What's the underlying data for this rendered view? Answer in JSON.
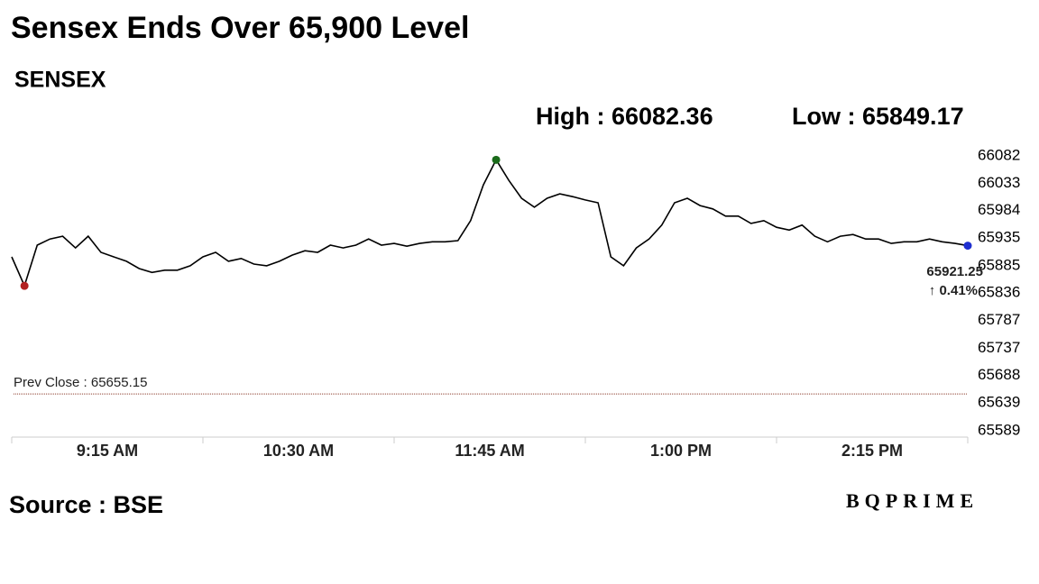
{
  "chart_data": {
    "type": "line",
    "title": "Sensex Ends Over 65,900 Level",
    "subtitle": "SENSEX",
    "high_label": "High : 66082.36",
    "low_label": "Low : 65849.17",
    "last_label": "65921.25",
    "change_label": "↑ 0.41%",
    "change_color": "#1a6b1a",
    "prev_close_label": "Prev Close : 65655.15",
    "prev_close": 65655.15,
    "prev_close_color": "#8b3a2a",
    "source": "Source : BSE",
    "logo": "BQPRIME",
    "xlim": [
      "9:15",
      "15:30"
    ],
    "xticks": [
      {
        "value": "9:15",
        "label": "9:15 AM"
      },
      {
        "value": "10:30",
        "label": "10:30 AM"
      },
      {
        "value": "11:45",
        "label": "11:45 AM"
      },
      {
        "value": "13:00",
        "label": "1:00 PM"
      },
      {
        "value": "14:15",
        "label": "2:15 PM"
      }
    ],
    "ylim": [
      65589,
      66082
    ],
    "yticks": [
      66082,
      66033,
      65984,
      65935,
      65885,
      65836,
      65787,
      65737,
      65688,
      65639,
      65589
    ],
    "x": [
      "9:15",
      "9:20",
      "9:25",
      "9:30",
      "9:35",
      "9:40",
      "9:45",
      "9:50",
      "9:55",
      "10:00",
      "10:05",
      "10:10",
      "10:15",
      "10:20",
      "10:25",
      "10:30",
      "10:35",
      "10:40",
      "10:45",
      "10:50",
      "10:55",
      "11:00",
      "11:05",
      "11:10",
      "11:15",
      "11:20",
      "11:25",
      "11:30",
      "11:35",
      "11:40",
      "11:45",
      "11:50",
      "11:55",
      "12:00",
      "12:05",
      "12:10",
      "12:15",
      "12:20",
      "12:25",
      "12:30",
      "12:35",
      "12:40",
      "12:45",
      "12:50",
      "12:55",
      "13:00",
      "13:05",
      "13:10",
      "13:15",
      "13:20",
      "13:25",
      "13:30",
      "13:35",
      "13:40",
      "13:45",
      "13:50",
      "13:55",
      "14:00",
      "14:05",
      "14:10",
      "14:15",
      "14:20",
      "14:25",
      "14:30",
      "14:35",
      "14:40",
      "14:45",
      "14:50",
      "14:55",
      "15:00",
      "15:05",
      "15:10",
      "15:15",
      "15:20",
      "15:25",
      "15:30"
    ],
    "series": [
      {
        "name": "SENSEX",
        "color": "#000000",
        "values": [
          65901,
          65849,
          65922,
          65933,
          65938,
          65917,
          65938,
          65909,
          65901,
          65893,
          65880,
          65873,
          65877,
          65877,
          65885,
          65901,
          65909,
          65893,
          65898,
          65888,
          65885,
          65893,
          65904,
          65912,
          65909,
          65922,
          65917,
          65922,
          65933,
          65922,
          65925,
          65920,
          65925,
          65928,
          65928,
          65930,
          65966,
          66030,
          66075,
          66038,
          66006,
          65990,
          66006,
          66014,
          66009,
          66003,
          65998,
          65901,
          65885,
          65917,
          65933,
          65958,
          65998,
          66006,
          65993,
          65987,
          65974,
          65974,
          65961,
          65966,
          65954,
          65949,
          65958,
          65938,
          65928,
          65938,
          65941,
          65933,
          65933,
          65925,
          65928,
          65928,
          65933,
          65928,
          65925,
          65921
        ]
      }
    ],
    "markers": [
      {
        "x": "9:20",
        "color": "#b22222"
      },
      {
        "x": "12:25",
        "color": "#1a6b1a"
      },
      {
        "x": "15:30",
        "color": "#1f2fd0"
      }
    ]
  }
}
